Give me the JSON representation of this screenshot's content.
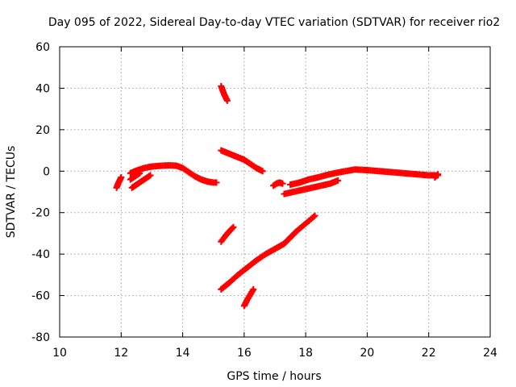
{
  "chart_data": {
    "type": "scatter",
    "title": "Day 095 of 2022, Sidereal Day-to-day VTEC variation (SDTVAR) for receiver rio2",
    "xlabel": "GPS time / hours",
    "ylabel": "SDTVAR / TECUs",
    "xlim": [
      10,
      24
    ],
    "ylim": [
      -80,
      60
    ],
    "xticks": [
      "10",
      "12",
      "14",
      "16",
      "18",
      "20",
      "22",
      "24"
    ],
    "yticks": [
      "-80",
      "-60",
      "-40",
      "-20",
      "0",
      "20",
      "40",
      "60"
    ],
    "grid": true,
    "marker": "plus",
    "color": "#ff0000",
    "series": [
      {
        "x": [
          11.85,
          11.9,
          11.95,
          12.0
        ],
        "y": [
          -8,
          -6,
          -4.5,
          -3
        ]
      },
      {
        "x": [
          12.3,
          12.45,
          12.6,
          12.75,
          12.9,
          13.05,
          13.2,
          13.4,
          13.6,
          13.8,
          14.0,
          14.2,
          14.4,
          14.6,
          14.8,
          15.0,
          15.1
        ],
        "y": [
          -1,
          0,
          0.8,
          1.5,
          2,
          2.3,
          2.5,
          2.7,
          2.8,
          2.6,
          1.5,
          -0.5,
          -2.5,
          -4,
          -5,
          -5.5,
          -5.5
        ]
      },
      {
        "x": [
          12.35,
          12.5,
          12.65,
          12.8,
          12.95
        ],
        "y": [
          -8,
          -6.5,
          -5,
          -3.5,
          -2
        ]
      },
      {
        "x": [
          12.3,
          12.4,
          12.5,
          12.6
        ],
        "y": [
          -4,
          -3,
          -2,
          -1
        ]
      },
      {
        "x": [
          15.25,
          15.35,
          15.45
        ],
        "y": [
          41,
          37,
          34
        ]
      },
      {
        "x": [
          15.25,
          15.5,
          15.75,
          16.0,
          16.2,
          16.4,
          16.6
        ],
        "y": [
          10,
          8.5,
          7,
          5.5,
          3.5,
          1.5,
          0
        ]
      },
      {
        "x": [
          15.25,
          15.4,
          15.55,
          15.65
        ],
        "y": [
          -34,
          -31,
          -28.5,
          -27
        ]
      },
      {
        "x": [
          15.25,
          15.5,
          15.8,
          16.1,
          16.4,
          16.7,
          17.0,
          17.3
        ],
        "y": [
          -57,
          -54,
          -50,
          -46.5,
          -43,
          -40,
          -37.5,
          -35
        ]
      },
      {
        "x": [
          16.0,
          16.1,
          16.2,
          16.3
        ],
        "y": [
          -65,
          -62,
          -59.5,
          -57
        ]
      },
      {
        "x": [
          16.95,
          17.05,
          17.15,
          17.25
        ],
        "y": [
          -7,
          -6,
          -5.5,
          -6
        ]
      },
      {
        "x": [
          17.3,
          17.5,
          17.7,
          17.9,
          18.1,
          18.3
        ],
        "y": [
          -35,
          -32,
          -29,
          -26.5,
          -24,
          -21.5
        ]
      },
      {
        "x": [
          17.5,
          17.8,
          18.1,
          18.4,
          18.7,
          19.0,
          19.3,
          19.6,
          20.0,
          20.4,
          20.8,
          21.2,
          21.6,
          22.0,
          22.3
        ],
        "y": [
          -6.5,
          -5.5,
          -4,
          -3,
          -1.8,
          -0.8,
          0,
          0.8,
          0.5,
          0,
          -0.5,
          -1,
          -1.5,
          -2,
          -2
        ]
      },
      {
        "x": [
          17.3,
          17.6,
          17.9,
          18.2,
          18.5,
          18.8,
          19.05
        ],
        "y": [
          -11,
          -10,
          -9,
          -8,
          -7,
          -6,
          -4.5
        ]
      },
      {
        "x": [
          22.2,
          22.3
        ],
        "y": [
          -3,
          -1.5
        ]
      }
    ]
  }
}
